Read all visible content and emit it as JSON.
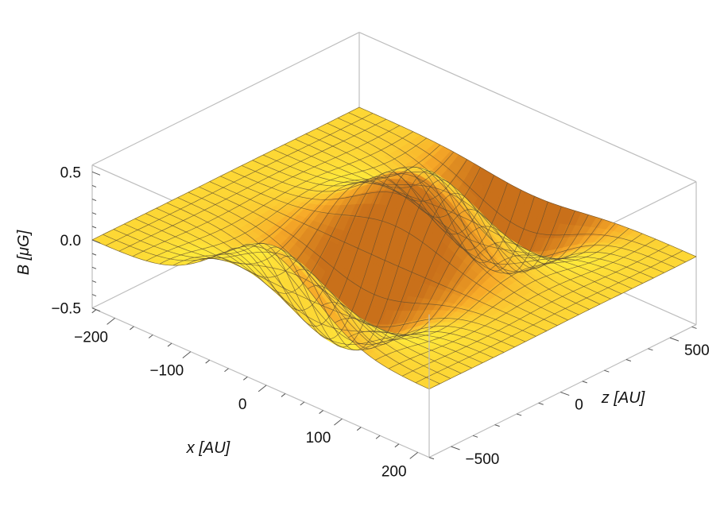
{
  "chart_data": {
    "type": "surface3d",
    "x_label": "x [AU]",
    "z_label": "z [AU]",
    "y_label": "B [μG]",
    "x_range": [
      -230,
      215
    ],
    "z_range": [
      -600,
      620
    ],
    "b_range": [
      -0.5,
      0.55
    ],
    "x_ticks": [
      {
        "value": -200,
        "label": "−200"
      },
      {
        "value": -100,
        "label": "−100"
      },
      {
        "value": 0,
        "label": "0"
      },
      {
        "value": 100,
        "label": "100"
      },
      {
        "value": 200,
        "label": "200"
      }
    ],
    "z_ticks": [
      {
        "value": -500,
        "label": "−500"
      },
      {
        "value": 0,
        "label": "0"
      },
      {
        "value": 500,
        "label": "500"
      }
    ],
    "b_ticks": [
      {
        "value": -0.5,
        "label": "−0.5"
      },
      {
        "value": 0.0,
        "label": "0.0"
      },
      {
        "value": 0.5,
        "label": "0.5"
      }
    ],
    "surface": {
      "amplitude": 0.5,
      "x_width": 90,
      "z_wavelength": 700,
      "mesh_lines": 25
    },
    "colors": {
      "surface_light": "#ffe83a",
      "surface_mid": "#f7a928",
      "surface_dark": "#c9701a",
      "mesh": "#5a4a30",
      "box": "#bdbdbd"
    }
  }
}
